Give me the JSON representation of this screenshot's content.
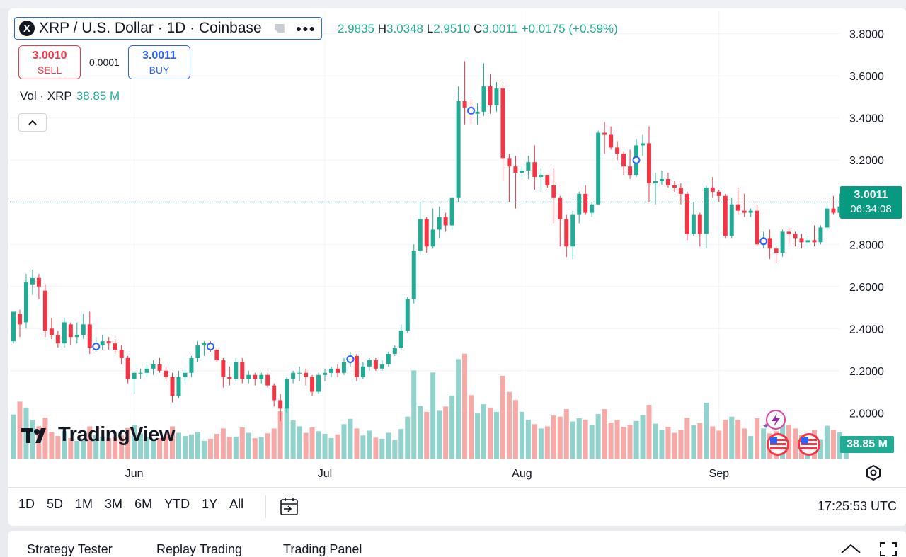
{
  "header": {
    "symbol_logo": "X",
    "title": "XRP / U.S. Dollar · 1D · Coinbase",
    "more_icon": "more-dots-icon",
    "ohlc": {
      "o_label": "O",
      "o_value": "2.9835",
      "h_label": "H",
      "h_value": "3.0348",
      "l_label": "L",
      "l_value": "2.9510",
      "c_label": "C",
      "c_value": "3.0011",
      "change": "+0.0175 (+0.59%)"
    }
  },
  "trade": {
    "sell_price": "3.0010",
    "sell_label": "SELL",
    "spread": "0.0001",
    "buy_price": "3.0011",
    "buy_label": "BUY"
  },
  "volume_legend": {
    "label": "Vol · XRP",
    "value": "38.85 M"
  },
  "price_scale": {
    "labels": [
      "3.8000",
      "3.6000",
      "3.4000",
      "3.2000",
      "3.0000",
      "2.8000",
      "2.6000",
      "2.4000",
      "2.2000",
      "2.0000"
    ],
    "last_price": "3.0011",
    "countdown": "06:34:08",
    "volume_value": "38.85 M"
  },
  "time_axis": {
    "labels": [
      "Jun",
      "Jul",
      "Aug",
      "Sep"
    ]
  },
  "branding": {
    "logo_text": "TradingView"
  },
  "range_buttons": [
    "1D",
    "5D",
    "1M",
    "3M",
    "6M",
    "YTD",
    "1Y",
    "All"
  ],
  "clock": "17:25:53 UTC",
  "bottom_tabs": [
    "Strategy Tester",
    "Replay Trading",
    "Trading Panel"
  ],
  "colors": {
    "up": "#22ab94",
    "down": "#f23645",
    "up_volume": "#92d2cc",
    "down_volume": "#f7a9a7",
    "accent": "#2962ff"
  },
  "chart_data": {
    "type": "candlestick",
    "title": "XRP / U.S. Dollar · 1D · Coinbase",
    "ylim": [
      1.87,
      3.92
    ],
    "x_ticks": [
      {
        "label": "Jun",
        "index": 19
      },
      {
        "label": "Jul",
        "index": 49
      },
      {
        "label": "Aug",
        "index": 80
      },
      {
        "label": "Sep",
        "index": 111
      }
    ],
    "last_price": 3.0011,
    "marker_indices": [
      13,
      31,
      53,
      72,
      98,
      118
    ],
    "candles": [
      [
        2.34,
        2.48,
        2.33,
        2.47,
        0.82
      ],
      [
        2.47,
        2.42,
        2.36,
        2.49,
        1.06
      ],
      [
        2.43,
        2.62,
        2.4,
        2.66,
        0.95
      ],
      [
        2.61,
        2.64,
        2.56,
        2.68,
        0.72
      ],
      [
        2.64,
        2.6,
        2.54,
        2.66,
        0.6
      ],
      [
        2.58,
        2.39,
        2.36,
        2.61,
        0.76
      ],
      [
        2.4,
        2.37,
        2.35,
        2.45,
        0.5
      ],
      [
        2.37,
        2.33,
        2.31,
        2.39,
        0.42
      ],
      [
        2.33,
        2.43,
        2.31,
        2.45,
        0.51
      ],
      [
        2.42,
        2.36,
        2.32,
        2.43,
        0.38
      ],
      [
        2.36,
        2.37,
        2.33,
        2.43,
        0.33
      ],
      [
        2.37,
        2.42,
        2.35,
        2.47,
        0.36
      ],
      [
        2.42,
        2.31,
        2.28,
        2.48,
        0.6
      ],
      [
        2.31,
        2.32,
        2.29,
        2.36,
        0.45
      ],
      [
        2.32,
        2.34,
        2.3,
        2.37,
        0.41
      ],
      [
        2.34,
        2.33,
        2.3,
        2.36,
        0.38
      ],
      [
        2.33,
        2.3,
        2.28,
        2.35,
        0.4
      ],
      [
        2.3,
        2.26,
        2.23,
        2.32,
        0.43
      ],
      [
        2.26,
        2.16,
        2.14,
        2.27,
        0.57
      ],
      [
        2.16,
        2.19,
        2.09,
        2.2,
        0.63
      ],
      [
        2.19,
        2.19,
        2.16,
        2.21,
        0.47
      ],
      [
        2.19,
        2.21,
        2.17,
        2.23,
        0.4
      ],
      [
        2.21,
        2.23,
        2.18,
        2.25,
        0.35
      ],
      [
        2.23,
        2.2,
        2.19,
        2.26,
        0.38
      ],
      [
        2.2,
        2.17,
        2.15,
        2.22,
        0.46
      ],
      [
        2.17,
        2.08,
        2.05,
        2.19,
        0.6
      ],
      [
        2.08,
        2.17,
        2.07,
        2.2,
        0.48
      ],
      [
        2.17,
        2.19,
        2.14,
        2.21,
        0.42
      ],
      [
        2.19,
        2.26,
        2.17,
        2.27,
        0.45
      ],
      [
        2.26,
        2.32,
        2.24,
        2.34,
        0.5
      ],
      [
        2.32,
        2.33,
        2.27,
        2.34,
        0.33
      ],
      [
        2.33,
        2.3,
        2.29,
        2.34,
        0.37
      ],
      [
        2.3,
        2.25,
        2.24,
        2.31,
        0.46
      ],
      [
        2.25,
        2.17,
        2.12,
        2.26,
        0.56
      ],
      [
        2.17,
        2.16,
        2.13,
        2.22,
        0.4
      ],
      [
        2.16,
        2.24,
        2.15,
        2.26,
        0.41
      ],
      [
        2.24,
        2.16,
        2.14,
        2.26,
        0.58
      ],
      [
        2.16,
        2.18,
        2.14,
        2.2,
        0.48
      ],
      [
        2.18,
        2.16,
        2.13,
        2.19,
        0.38
      ],
      [
        2.16,
        2.18,
        2.14,
        2.19,
        0.4
      ],
      [
        2.18,
        2.13,
        2.12,
        2.19,
        0.47
      ],
      [
        2.13,
        2.06,
        2.03,
        2.14,
        0.56
      ],
      [
        2.06,
        2.02,
        1.96,
        2.09,
        0.88
      ],
      [
        2.02,
        2.16,
        2.0,
        2.17,
        0.96
      ],
      [
        2.16,
        2.19,
        2.14,
        2.2,
        0.71
      ],
      [
        2.19,
        2.19,
        2.15,
        2.22,
        0.6
      ],
      [
        2.19,
        2.17,
        2.13,
        2.21,
        0.48
      ],
      [
        2.17,
        2.1,
        2.08,
        2.18,
        0.58
      ],
      [
        2.1,
        2.18,
        2.09,
        2.19,
        0.51
      ],
      [
        2.18,
        2.19,
        2.15,
        2.21,
        0.46
      ],
      [
        2.19,
        2.21,
        2.17,
        2.22,
        0.38
      ],
      [
        2.21,
        2.19,
        2.17,
        2.23,
        0.45
      ],
      [
        2.19,
        2.24,
        2.18,
        2.26,
        0.64
      ],
      [
        2.24,
        2.27,
        2.22,
        2.29,
        0.74
      ],
      [
        2.27,
        2.17,
        2.15,
        2.28,
        0.56
      ],
      [
        2.17,
        2.22,
        2.16,
        2.24,
        0.43
      ],
      [
        2.22,
        2.25,
        2.2,
        2.26,
        0.52
      ],
      [
        2.25,
        2.21,
        2.2,
        2.26,
        0.39
      ],
      [
        2.21,
        2.23,
        2.2,
        2.25,
        0.37
      ],
      [
        2.23,
        2.28,
        2.22,
        2.29,
        0.48
      ],
      [
        2.28,
        2.31,
        2.27,
        2.32,
        0.35
      ],
      [
        2.31,
        2.39,
        2.3,
        2.42,
        0.55
      ],
      [
        2.39,
        2.54,
        2.38,
        2.55,
        0.78
      ],
      [
        2.54,
        2.77,
        2.52,
        2.8,
        1.64
      ],
      [
        2.77,
        2.92,
        2.75,
        3.0,
        0.98
      ],
      [
        2.92,
        2.79,
        2.76,
        2.93,
        0.87
      ],
      [
        2.79,
        2.87,
        2.78,
        2.97,
        1.6
      ],
      [
        2.87,
        2.93,
        2.83,
        2.98,
        0.89
      ],
      [
        2.93,
        2.89,
        2.86,
        2.95,
        0.97
      ],
      [
        2.89,
        3.02,
        2.87,
        3.02,
        1.17
      ],
      [
        3.02,
        3.48,
        3.0,
        3.55,
        1.85
      ],
      [
        3.48,
        3.45,
        3.37,
        3.67,
        1.95
      ],
      [
        3.45,
        3.42,
        3.37,
        3.49,
        1.18
      ],
      [
        3.42,
        3.43,
        3.37,
        3.47,
        0.84
      ],
      [
        3.43,
        3.55,
        3.41,
        3.66,
        1.01
      ],
      [
        3.55,
        3.46,
        3.42,
        3.61,
        0.95
      ],
      [
        3.46,
        3.54,
        3.43,
        3.57,
        0.87
      ],
      [
        3.54,
        3.21,
        3.1,
        3.56,
        1.54
      ],
      [
        3.21,
        3.17,
        3.0,
        3.23,
        1.24
      ],
      [
        3.17,
        3.14,
        2.97,
        3.22,
        1.09
      ],
      [
        3.14,
        3.15,
        3.12,
        3.17,
        0.87
      ],
      [
        3.15,
        3.19,
        3.11,
        3.22,
        0.72
      ],
      [
        3.19,
        3.12,
        3.06,
        3.27,
        0.64
      ],
      [
        3.12,
        3.13,
        3.05,
        3.16,
        0.56
      ],
      [
        3.13,
        3.08,
        3.07,
        3.13,
        0.6
      ],
      [
        3.08,
        3.02,
        2.9,
        3.16,
        0.8
      ],
      [
        3.02,
        2.92,
        2.79,
        3.03,
        0.78
      ],
      [
        2.92,
        2.79,
        2.74,
        2.94,
        0.92
      ],
      [
        2.79,
        2.94,
        2.73,
        2.96,
        0.69
      ],
      [
        2.94,
        3.04,
        2.9,
        3.05,
        0.75
      ],
      [
        3.04,
        2.95,
        2.94,
        3.08,
        0.72
      ],
      [
        2.95,
        2.99,
        2.93,
        3.0,
        0.63
      ],
      [
        2.99,
        3.33,
        2.99,
        3.34,
        0.83
      ],
      [
        3.33,
        3.32,
        3.23,
        3.38,
        0.92
      ],
      [
        3.32,
        3.26,
        3.25,
        3.36,
        0.67
      ],
      [
        3.26,
        3.23,
        3.2,
        3.29,
        0.72
      ],
      [
        3.23,
        3.17,
        3.13,
        3.24,
        0.59
      ],
      [
        3.17,
        3.13,
        3.11,
        3.25,
        0.63
      ],
      [
        3.13,
        3.27,
        3.12,
        3.3,
        0.7
      ],
      [
        3.27,
        3.28,
        3.22,
        3.32,
        0.81
      ],
      [
        3.28,
        3.09,
        3.0,
        3.36,
        1.0
      ],
      [
        3.09,
        3.1,
        2.99,
        3.14,
        0.65
      ],
      [
        3.1,
        3.11,
        3.08,
        3.15,
        0.53
      ],
      [
        3.11,
        3.08,
        3.07,
        3.14,
        0.59
      ],
      [
        3.08,
        3.07,
        3.05,
        3.1,
        0.48
      ],
      [
        3.07,
        3.04,
        2.99,
        3.09,
        0.53
      ],
      [
        3.04,
        2.85,
        2.82,
        3.05,
        0.76
      ],
      [
        2.85,
        2.94,
        2.84,
        3.0,
        0.62
      ],
      [
        2.94,
        2.85,
        2.79,
        2.95,
        0.66
      ],
      [
        2.85,
        3.07,
        2.78,
        3.08,
        1.04
      ],
      [
        3.07,
        3.05,
        3.02,
        3.12,
        0.6
      ],
      [
        3.05,
        3.03,
        3.0,
        3.06,
        0.52
      ],
      [
        3.03,
        2.84,
        2.83,
        3.04,
        0.72
      ],
      [
        2.84,
        2.99,
        2.83,
        3.02,
        0.78
      ],
      [
        2.99,
        2.96,
        2.94,
        3.07,
        0.72
      ],
      [
        2.96,
        2.95,
        2.93,
        3.04,
        0.56
      ],
      [
        2.95,
        2.96,
        2.93,
        2.97,
        0.42
      ],
      [
        2.96,
        2.8,
        2.79,
        2.99,
        0.75
      ],
      [
        2.8,
        2.83,
        2.78,
        2.86,
        0.56
      ],
      [
        2.83,
        2.78,
        2.73,
        2.87,
        0.47
      ],
      [
        2.78,
        2.76,
        2.71,
        2.79,
        0.51
      ],
      [
        2.76,
        2.86,
        2.74,
        2.87,
        0.75
      ],
      [
        2.86,
        2.85,
        2.8,
        2.88,
        0.63
      ],
      [
        2.85,
        2.83,
        2.79,
        2.86,
        0.56
      ],
      [
        2.83,
        2.81,
        2.78,
        2.85,
        0.44
      ],
      [
        2.81,
        2.82,
        2.79,
        2.84,
        0.45
      ],
      [
        2.82,
        2.81,
        2.79,
        2.89,
        0.53
      ],
      [
        2.81,
        2.88,
        2.8,
        2.89,
        0.36
      ],
      [
        2.88,
        2.97,
        2.87,
        3.0,
        0.61
      ],
      [
        2.97,
        2.95,
        2.94,
        3.03,
        0.53
      ],
      [
        2.95,
        2.98,
        2.93,
        3.04,
        0.49
      ],
      [
        2.98,
        3.0,
        2.96,
        3.03,
        0.41
      ]
    ]
  }
}
